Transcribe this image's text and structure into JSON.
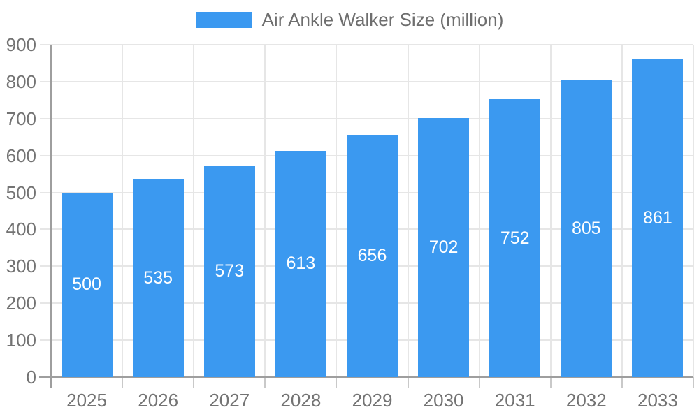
{
  "legend": {
    "label": "Air Ankle Walker Size (million)"
  },
  "colors": {
    "bar": "#3b99f0",
    "legend_text": "#6e6e6e",
    "axis_text": "#737373",
    "axis_line": "#9e9e9e",
    "gridline": "#e6e6e6",
    "tick": "#c9c9c9",
    "bar_label": "#ffffff",
    "background": "#ffffff"
  },
  "chart_data": {
    "type": "bar",
    "title": "",
    "categories": [
      "2025",
      "2026",
      "2027",
      "2028",
      "2029",
      "2030",
      "2031",
      "2032",
      "2033"
    ],
    "series": [
      {
        "name": "Air Ankle Walker Size (million)",
        "values": [
          500,
          535,
          573,
          613,
          656,
          702,
          752,
          805,
          861
        ]
      }
    ],
    "xlabel": "",
    "ylabel": "",
    "ylim": [
      0,
      900
    ],
    "yticks": [
      0,
      100,
      200,
      300,
      400,
      500,
      600,
      700,
      800,
      900
    ],
    "grid": true,
    "legend_position": "top",
    "bar_labels_inside": true
  }
}
